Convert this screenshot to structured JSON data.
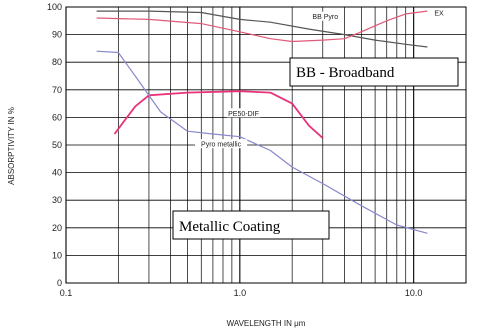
{
  "chart_data": {
    "type": "line",
    "title": "",
    "xlabel": "WAVELENGTH IN μm",
    "ylabel": "ABSORPTIVITY IN %",
    "xscale": "log",
    "xlim": [
      0.1,
      20
    ],
    "ylim": [
      0,
      100
    ],
    "x_ticks": [
      {
        "value": 0.1,
        "label": "0.1"
      },
      {
        "value": 1.0,
        "label": "1.0"
      },
      {
        "value": 10.0,
        "label": "10.0"
      }
    ],
    "y_ticks": [
      0,
      10,
      20,
      30,
      40,
      50,
      60,
      70,
      80,
      90,
      100
    ],
    "grid": true,
    "series": [
      {
        "name": "BB Pyro",
        "color": "#555555",
        "points": [
          [
            0.15,
            98.5
          ],
          [
            0.3,
            98.5
          ],
          [
            0.6,
            98
          ],
          [
            1.0,
            95.5
          ],
          [
            1.5,
            94.5
          ],
          [
            2.5,
            92
          ],
          [
            4.0,
            90
          ],
          [
            6.0,
            88
          ],
          [
            9.0,
            86.5
          ],
          [
            12.0,
            85.5
          ]
        ]
      },
      {
        "name": "EX",
        "color": "#e05a78",
        "points": [
          [
            0.15,
            96
          ],
          [
            0.3,
            95.5
          ],
          [
            0.6,
            94
          ],
          [
            1.0,
            91
          ],
          [
            1.5,
            88.5
          ],
          [
            2.0,
            87.5
          ],
          [
            3.0,
            88
          ],
          [
            4.0,
            88.5
          ],
          [
            5.0,
            91
          ],
          [
            7.0,
            95
          ],
          [
            9.0,
            97.5
          ],
          [
            12.0,
            98.5
          ]
        ]
      },
      {
        "name": "PE50-DIF",
        "color": "#e8337a",
        "points": [
          [
            0.19,
            54
          ],
          [
            0.25,
            64
          ],
          [
            0.3,
            68
          ],
          [
            0.5,
            69
          ],
          [
            1.0,
            69.5
          ],
          [
            1.5,
            69
          ],
          [
            2.0,
            65
          ],
          [
            2.5,
            57
          ],
          [
            3.0,
            52.5
          ]
        ]
      },
      {
        "name": "Pyro metallic",
        "color": "#8888cc",
        "points": [
          [
            0.15,
            84
          ],
          [
            0.2,
            83.5
          ],
          [
            0.25,
            75
          ],
          [
            0.35,
            62
          ],
          [
            0.5,
            55
          ],
          [
            0.7,
            54
          ],
          [
            1.0,
            53
          ],
          [
            1.5,
            48
          ],
          [
            2.0,
            42
          ],
          [
            3.0,
            36
          ],
          [
            5.0,
            28
          ],
          [
            8.0,
            21
          ],
          [
            12.0,
            18
          ]
        ]
      }
    ],
    "annotations": [
      {
        "text": "BB - Broadband"
      },
      {
        "text": "Metallic Coating"
      }
    ]
  }
}
